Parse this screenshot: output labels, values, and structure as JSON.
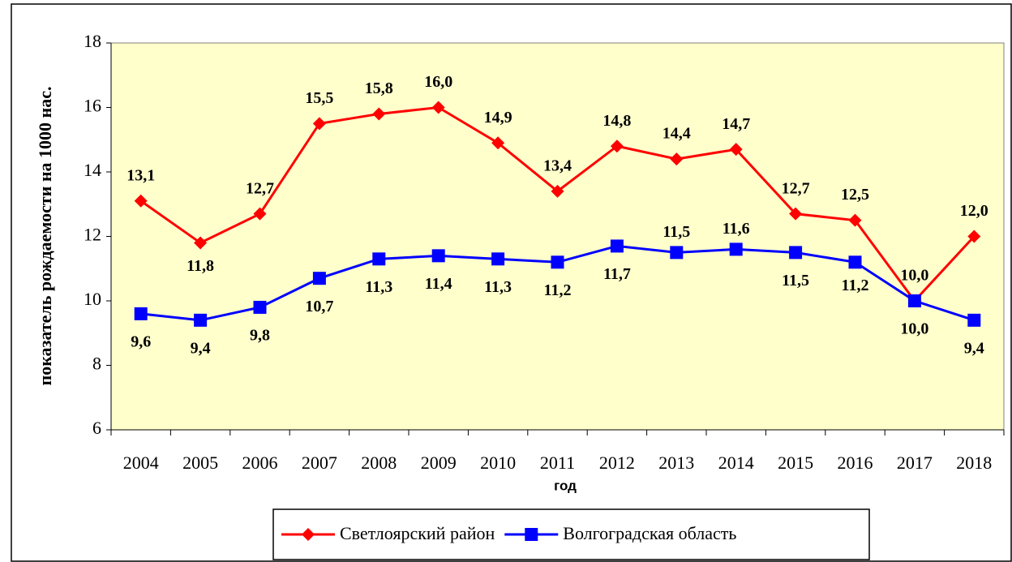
{
  "chart_data": {
    "type": "line",
    "x_label": "год",
    "y_label": "показатель рождаемости на 1000 нас.",
    "categories": [
      "2004",
      "2005",
      "2006",
      "2007",
      "2008",
      "2009",
      "2010",
      "2011",
      "2012",
      "2013",
      "2014",
      "2015",
      "2016",
      "2017",
      "2018"
    ],
    "series": [
      {
        "name": "Светлоярский район",
        "color": "#ff0000",
        "marker": "diamond",
        "values": [
          13.1,
          11.8,
          12.7,
          15.5,
          15.8,
          16.0,
          14.9,
          13.4,
          14.8,
          14.4,
          14.7,
          12.7,
          12.5,
          10.0,
          12.0
        ],
        "value_labels": [
          "13,1",
          "11,8",
          "12,7",
          "15,5",
          "15,8",
          "16,0",
          "14,9",
          "13,4",
          "14,8",
          "14,4",
          "14,7",
          "12,7",
          "12,5",
          "10,0",
          "12,0"
        ]
      },
      {
        "name": "Волгоградская область",
        "color": "#0000ff",
        "marker": "square",
        "values": [
          9.6,
          9.4,
          9.8,
          10.7,
          11.3,
          11.4,
          11.3,
          11.2,
          11.7,
          11.5,
          11.6,
          11.5,
          11.2,
          10.0,
          9.4
        ],
        "value_labels": [
          "9,6",
          "9,4",
          "9,8",
          "10,7",
          "11,3",
          "11,4",
          "11,3",
          "11,2",
          "11,7",
          "11,5",
          "11,6",
          "11,5",
          "11,2",
          "10,0",
          "9,4"
        ]
      }
    ],
    "ylim": [
      6,
      18
    ],
    "yticks": [
      6,
      8,
      10,
      12,
      14,
      16,
      18
    ],
    "plot_background": "#ffffcc",
    "legend": "bottom"
  }
}
